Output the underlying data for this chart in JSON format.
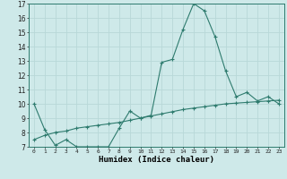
{
  "xlabel": "Humidex (Indice chaleur)",
  "background_color": "#cee9e9",
  "grid_color": "#b8d8d8",
  "line_color": "#2e7b6e",
  "x_values": [
    0,
    1,
    2,
    3,
    4,
    5,
    6,
    7,
    8,
    9,
    10,
    11,
    12,
    13,
    14,
    15,
    16,
    17,
    18,
    19,
    20,
    21,
    22,
    23
  ],
  "line1_y": [
    10.0,
    8.2,
    7.1,
    7.5,
    7.0,
    7.0,
    7.0,
    7.0,
    8.3,
    9.5,
    9.0,
    9.2,
    12.9,
    13.1,
    15.2,
    17.0,
    16.5,
    14.7,
    12.3,
    10.5,
    10.8,
    10.2,
    10.5,
    10.0
  ],
  "line2_y": [
    7.5,
    7.8,
    8.0,
    8.1,
    8.3,
    8.4,
    8.5,
    8.6,
    8.7,
    8.85,
    9.0,
    9.15,
    9.3,
    9.45,
    9.6,
    9.7,
    9.8,
    9.9,
    10.0,
    10.05,
    10.1,
    10.15,
    10.2,
    10.25
  ],
  "ylim": [
    7,
    17
  ],
  "yticks": [
    7,
    8,
    9,
    10,
    11,
    12,
    13,
    14,
    15,
    16,
    17
  ],
  "xticks": [
    0,
    1,
    2,
    3,
    4,
    5,
    6,
    7,
    8,
    9,
    10,
    11,
    12,
    13,
    14,
    15,
    16,
    17,
    18,
    19,
    20,
    21,
    22,
    23
  ],
  "xlim": [
    -0.5,
    23.5
  ]
}
